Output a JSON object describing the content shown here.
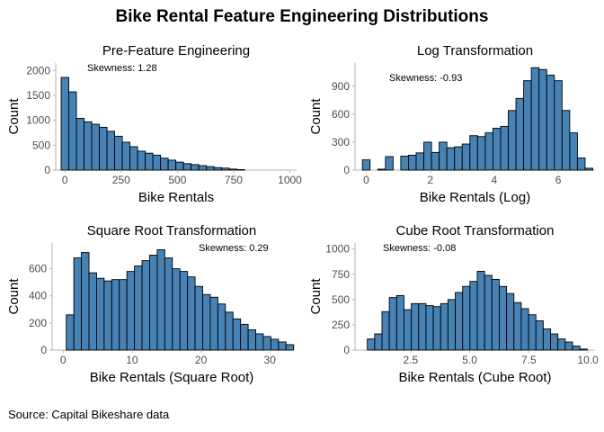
{
  "title": "Bike Rental Feature Engineering Distributions",
  "caption": "Source: Capital Bikeshare data",
  "bar_color": "#4682B4",
  "chart_data": [
    {
      "type": "bar",
      "title": "Pre-Feature Engineering",
      "xlabel": "Bike Rentals",
      "ylabel": "Count",
      "annotation": "Skewness: 1.28",
      "xlim": [
        -41,
        1030
      ],
      "ylim": [
        0,
        2150
      ],
      "xticks": [
        0,
        250,
        500,
        750,
        1000
      ],
      "yticks": [
        0,
        500,
        1000,
        1500,
        2000
      ],
      "bin_start": -17,
      "bin_width": 34,
      "values": [
        1860,
        1570,
        1040,
        970,
        920,
        860,
        780,
        680,
        560,
        470,
        380,
        340,
        300,
        240,
        200,
        160,
        130,
        110,
        90,
        70,
        50,
        40,
        20,
        10
      ]
    },
    {
      "type": "bar",
      "title": "Log Transformation",
      "xlabel": "Bike Rentals (Log)",
      "ylabel": "Count",
      "annotation": "Skewness: -0.93",
      "xlim": [
        -0.35,
        7.15
      ],
      "ylim": [
        0,
        1150
      ],
      "xticks": [
        0,
        2,
        4,
        6
      ],
      "yticks": [
        0,
        300,
        600,
        900
      ],
      "bin_start": -0.12,
      "bin_width": 0.24,
      "values": [
        110,
        0,
        10,
        145,
        0,
        150,
        160,
        185,
        300,
        190,
        300,
        240,
        250,
        280,
        370,
        360,
        400,
        450,
        470,
        640,
        770,
        960,
        1100,
        1080,
        1020,
        960,
        640,
        400,
        130,
        20
      ]
    },
    {
      "type": "bar",
      "title": "Square Root Transformation",
      "xlabel": "Bike Rentals (Square Root)",
      "ylabel": "Count",
      "annotation": "Skewness: 0.29",
      "xlim": [
        -1.6,
        33.1
      ],
      "ylim": [
        0,
        790
      ],
      "xticks": [
        0,
        10,
        20,
        30
      ],
      "yticks": [
        0,
        200,
        400,
        600
      ],
      "bin_start": 0.45,
      "bin_width": 1.1,
      "values": [
        260,
        680,
        720,
        570,
        530,
        510,
        520,
        520,
        580,
        620,
        660,
        700,
        740,
        680,
        600,
        580,
        540,
        470,
        410,
        390,
        340,
        280,
        230,
        190,
        150,
        120,
        100,
        80,
        60,
        40
      ]
    },
    {
      "type": "bar",
      "title": "Cube Root Transformation",
      "xlabel": "Bike Rentals (Cube Root)",
      "ylabel": "Count",
      "annotation": "Skewness: -0.08",
      "xlim": [
        0.15,
        10.3
      ],
      "ylim": [
        0,
        1060
      ],
      "xticks": [
        2.5,
        5.0,
        7.5,
        10.0
      ],
      "xtick_labels": [
        "2.5",
        "5.0",
        "7.5",
        "10.0"
      ],
      "yticks": [
        0,
        250,
        500,
        750,
        1000
      ],
      "bin_start": 0.67,
      "bin_width": 0.31,
      "values": [
        110,
        160,
        380,
        520,
        540,
        400,
        460,
        460,
        440,
        430,
        460,
        500,
        570,
        630,
        680,
        780,
        740,
        700,
        630,
        560,
        470,
        410,
        350,
        290,
        210,
        160,
        110,
        80,
        40,
        10
      ]
    }
  ]
}
